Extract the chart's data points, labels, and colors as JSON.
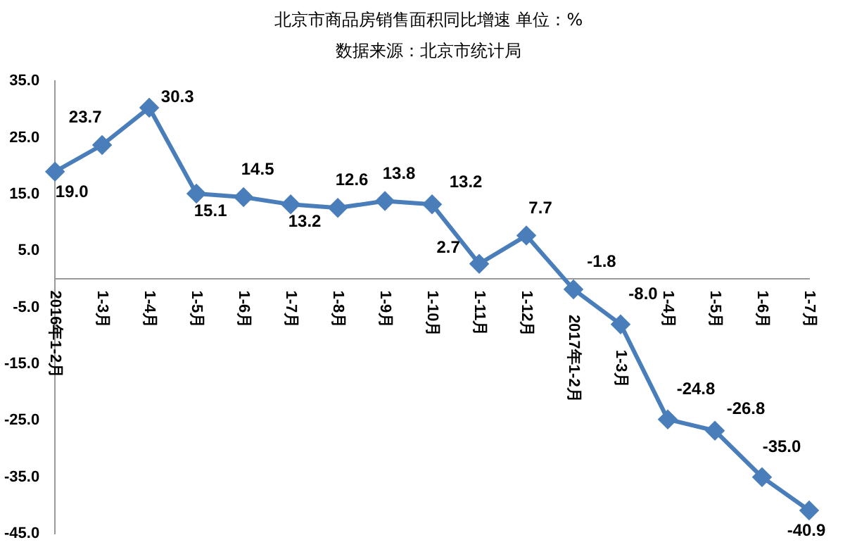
{
  "chart_data": {
    "type": "line",
    "title": "北京市商品房销售面积同比增速 单位：%",
    "subtitle": "数据来源：北京市统计局",
    "categories": [
      "2016年1-2月",
      "1-3月",
      "1-4月",
      "1-5月",
      "1-6月",
      "1-7月",
      "1-8月",
      "1-9月",
      "1-10月",
      "1-11月",
      "1-12月",
      "2017年1-2月",
      "1-3月",
      "1-4月",
      "1-5月",
      "1-6月",
      "1-7月"
    ],
    "series": [
      {
        "color": "#4a7ebb",
        "values": [
          19.0,
          23.7,
          30.3,
          15.1,
          14.5,
          13.2,
          12.6,
          13.8,
          13.2,
          2.7,
          7.7,
          -1.8,
          -8.0,
          -24.8,
          -26.8,
          -35.0,
          -40.9
        ]
      }
    ],
    "ylim": [
      -45,
      35
    ],
    "yticks": [
      {
        "value": -45,
        "label": "-45.0"
      },
      {
        "value": -35,
        "label": "-35.0"
      },
      {
        "value": -25,
        "label": "-25.0"
      },
      {
        "value": -15,
        "label": "-15.0"
      },
      {
        "value": -5,
        "label": "-5.0"
      },
      {
        "value": 5,
        "label": "5.0"
      },
      {
        "value": 15,
        "label": "15.0"
      },
      {
        "value": 25,
        "label": "25.0"
      },
      {
        "value": 35,
        "label": "35.0"
      }
    ],
    "grid": false,
    "legend": false,
    "marker": "diamond",
    "line_style": "solid",
    "value_labels": [
      "19.0",
      "23.7",
      "30.3",
      "15.1",
      "14.5",
      "13.2",
      "12.6",
      "13.8",
      "13.2",
      "2.7",
      "7.7",
      "-1.8",
      "-8.0",
      "-24.8",
      "-26.8",
      "-35.0",
      "-40.9"
    ]
  }
}
